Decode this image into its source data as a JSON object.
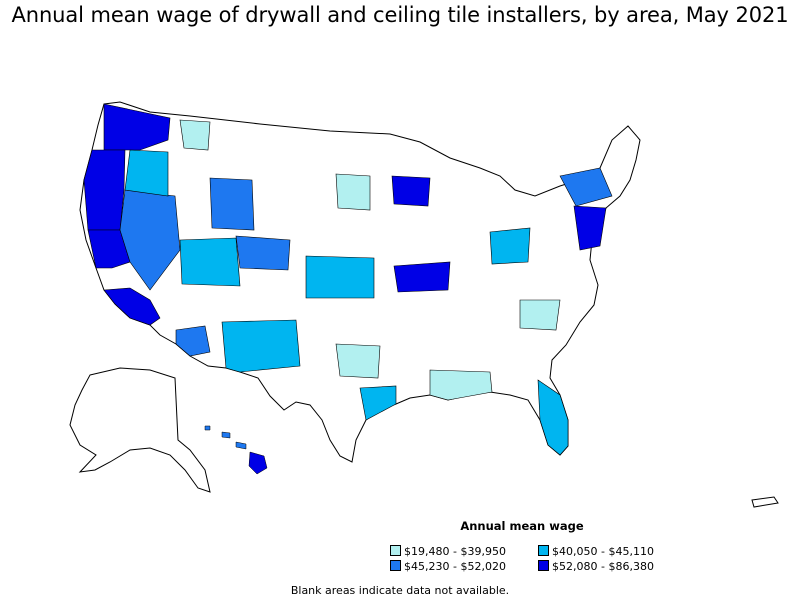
{
  "title": "Annual mean wage of drywall and ceiling tile installers, by area, May 2021",
  "legend": {
    "title": "Annual mean wage",
    "items": [
      {
        "label": "$19,480 - $39,950",
        "color": "#b2f0f0"
      },
      {
        "label": "$40,050 - $45,110",
        "color": "#00b5f0"
      },
      {
        "label": "$45,230 - $52,020",
        "color": "#1e78f0"
      },
      {
        "label": "$52,080 - $86,380",
        "color": "#0000e6"
      }
    ]
  },
  "footnote": "Blank areas indicate data not available."
}
